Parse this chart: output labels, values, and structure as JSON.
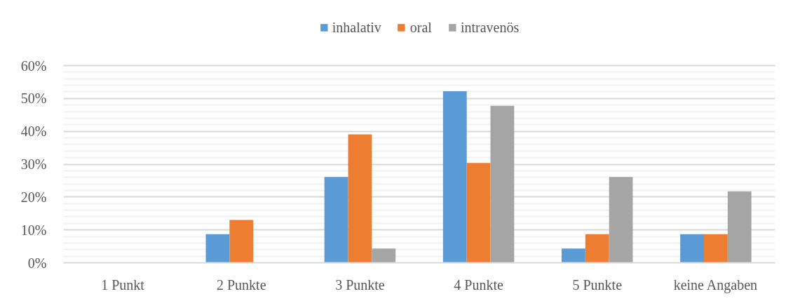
{
  "chart_data": {
    "type": "bar",
    "categories": [
      "1 Punkt",
      "2 Punkte",
      "3 Punkte",
      "4 Punkte",
      "5 Punkte",
      "keine Angaben"
    ],
    "series": [
      {
        "name": "inhalativ",
        "color": "#5b9bd5",
        "values": [
          0,
          8.7,
          26.1,
          52.2,
          4.3,
          8.7
        ]
      },
      {
        "name": "oral",
        "color": "#ed7d31",
        "values": [
          0,
          13.0,
          39.1,
          30.4,
          8.7,
          8.7
        ]
      },
      {
        "name": "intravenös",
        "color": "#a5a5a5",
        "values": [
          0,
          0,
          4.3,
          47.8,
          26.1,
          21.7
        ]
      }
    ],
    "ylim": [
      0,
      60
    ],
    "yticks": [
      {
        "value": 0,
        "label": "0%"
      },
      {
        "value": 2,
        "label": null
      },
      {
        "value": 4,
        "label": null
      },
      {
        "value": 6,
        "label": null
      },
      {
        "value": 8,
        "label": null
      },
      {
        "value": 10,
        "label": "10%"
      },
      {
        "value": 12,
        "label": null
      },
      {
        "value": 14,
        "label": null
      },
      {
        "value": 16,
        "label": null
      },
      {
        "value": 18,
        "label": null
      },
      {
        "value": 20,
        "label": "20%"
      },
      {
        "value": 22,
        "label": null
      },
      {
        "value": 24,
        "label": null
      },
      {
        "value": 26,
        "label": null
      },
      {
        "value": 28,
        "label": null
      },
      {
        "value": 30,
        "label": "30%"
      },
      {
        "value": 32,
        "label": null
      },
      {
        "value": 34,
        "label": null
      },
      {
        "value": 36,
        "label": null
      },
      {
        "value": 38,
        "label": null
      },
      {
        "value": 40,
        "label": "40%"
      },
      {
        "value": 42,
        "label": null
      },
      {
        "value": 44,
        "label": null
      },
      {
        "value": 46,
        "label": null
      },
      {
        "value": 48,
        "label": null
      },
      {
        "value": 50,
        "label": "50%"
      },
      {
        "value": 52,
        "label": null
      },
      {
        "value": 54,
        "label": null
      },
      {
        "value": 56,
        "label": null
      },
      {
        "value": 58,
        "label": null
      },
      {
        "value": 60,
        "label": "60%"
      }
    ],
    "grid": "y",
    "legend": "top"
  }
}
